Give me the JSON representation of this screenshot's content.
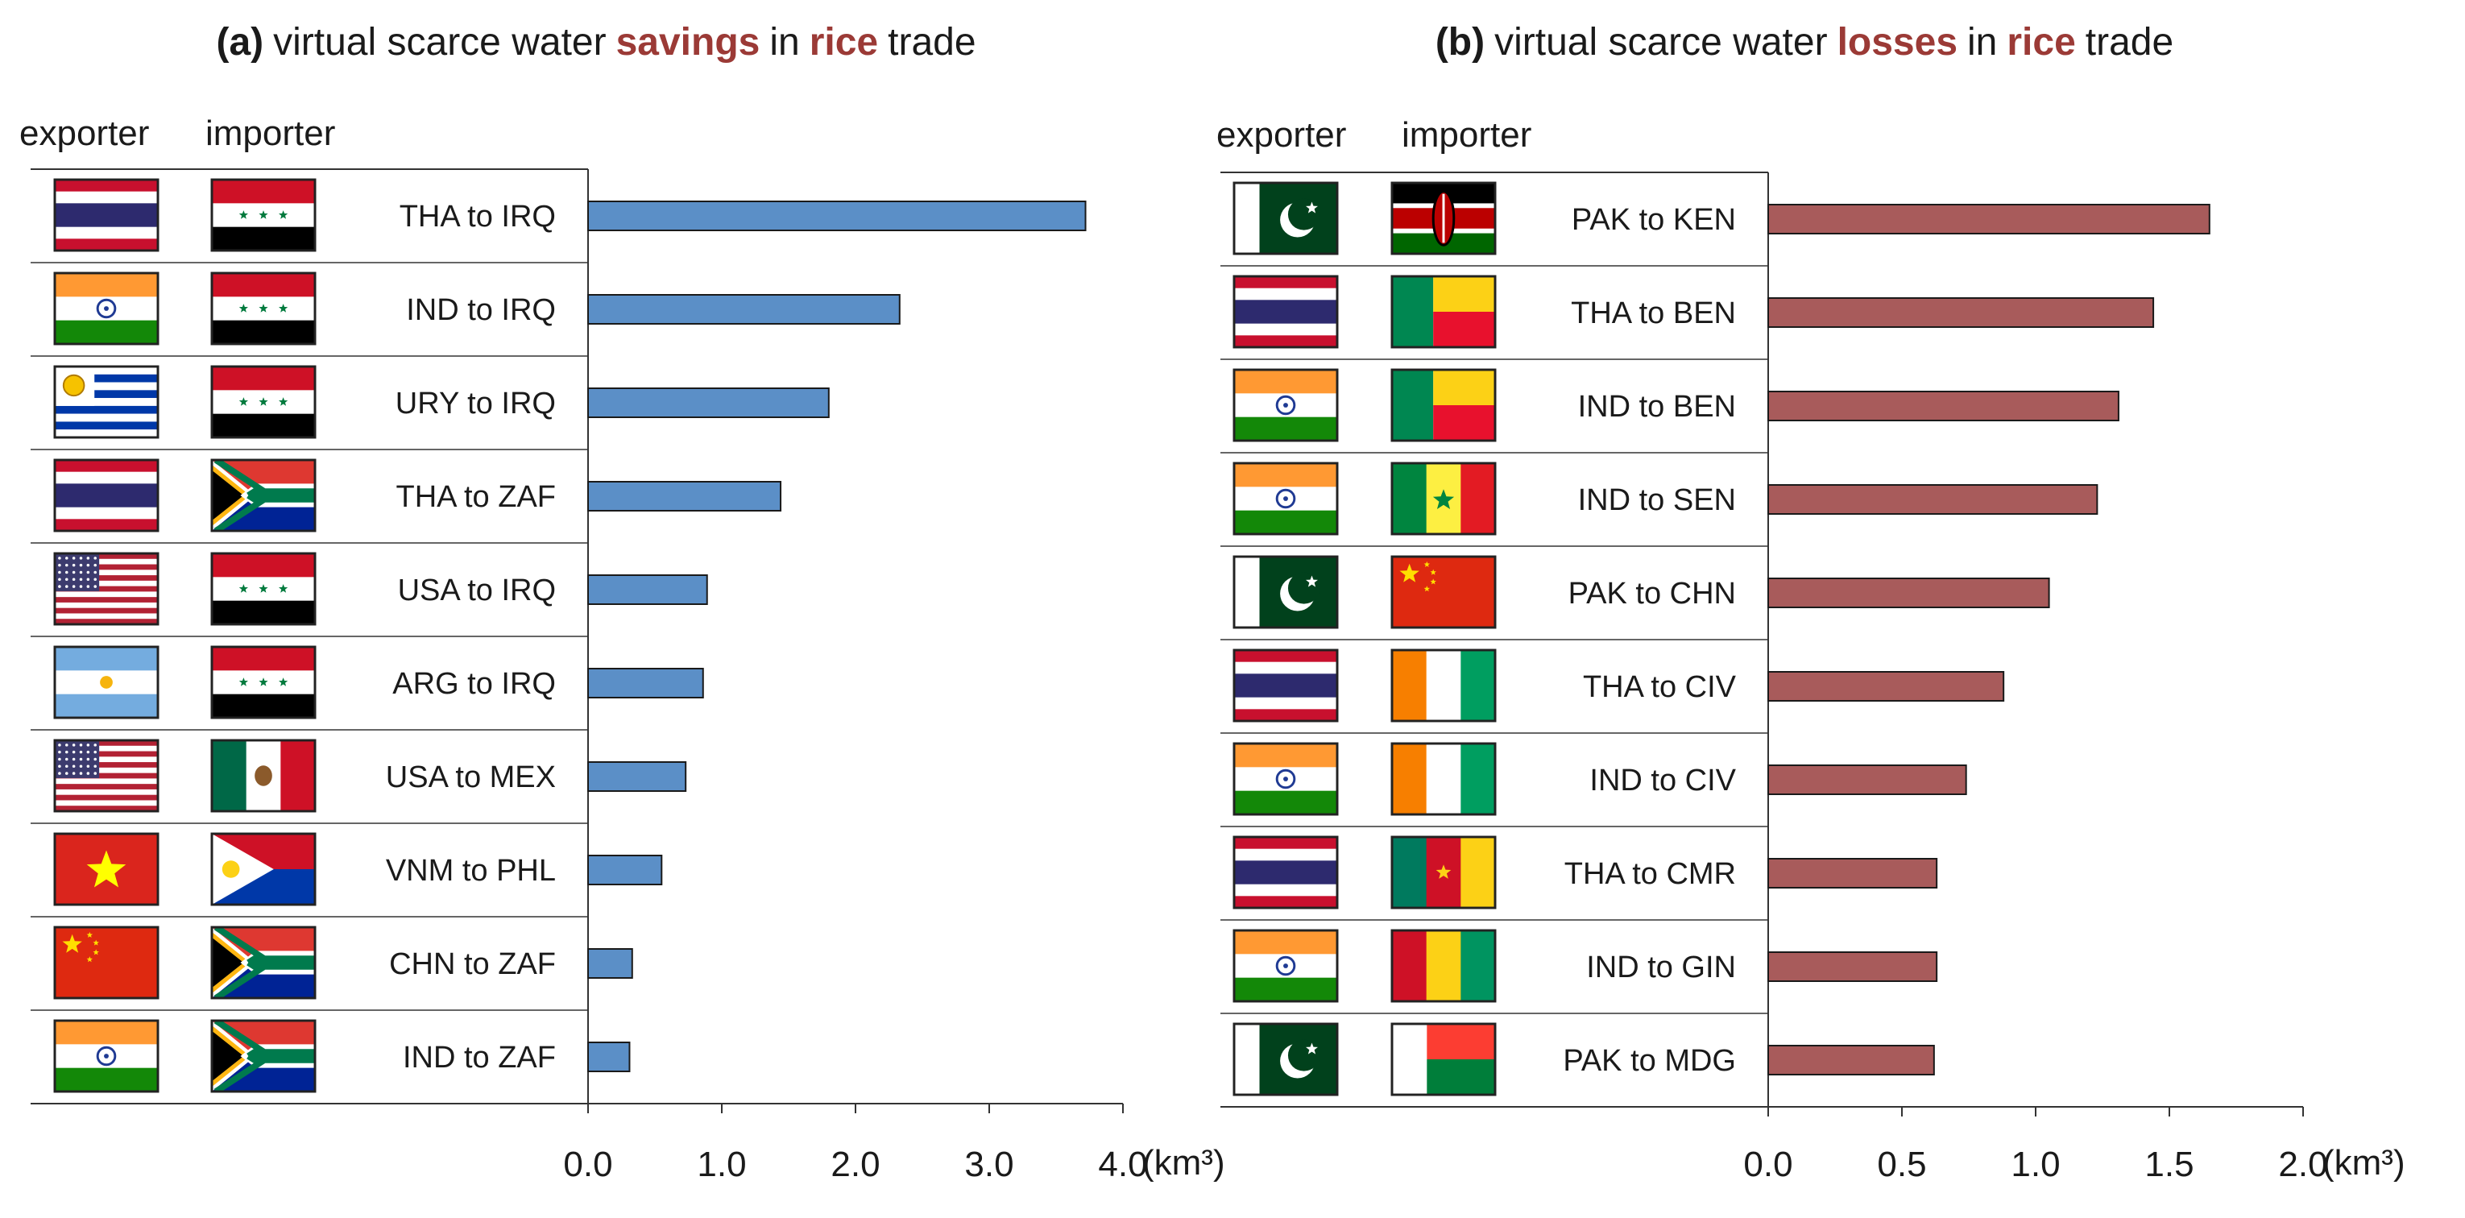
{
  "chart_data": [
    {
      "id": "a",
      "type": "bar",
      "orientation": "horizontal",
      "title": {
        "prefix": "(a)",
        "text1": "virtual scarce water",
        "highlight1": "savings",
        "text2": "in",
        "highlight2": "rice",
        "text3": "trade"
      },
      "column_headers": {
        "exporter": "exporter",
        "importer": "importer"
      },
      "categories": [
        "THA to IRQ",
        "IND to IRQ",
        "URY to IRQ",
        "THA to ZAF",
        "USA to IRQ",
        "ARG to IRQ",
        "USA to MEX",
        "VNM to PHL",
        "CHN to ZAF",
        "IND to ZAF"
      ],
      "exporters": [
        "THA",
        "IND",
        "URY",
        "THA",
        "USA",
        "ARG",
        "USA",
        "VNM",
        "CHN",
        "IND"
      ],
      "importers": [
        "IRQ",
        "IRQ",
        "IRQ",
        "ZAF",
        "IRQ",
        "IRQ",
        "MEX",
        "PHL",
        "ZAF",
        "ZAF"
      ],
      "values": [
        3.72,
        2.33,
        1.8,
        1.44,
        0.89,
        0.86,
        0.73,
        0.55,
        0.33,
        0.31
      ],
      "xlim": [
        0,
        4.0
      ],
      "xticks": [
        "0.0",
        "1.0",
        "2.0",
        "3.0",
        "4.0"
      ],
      "xlabel": "(km³)",
      "bar_color": "#5b8fc7"
    },
    {
      "id": "b",
      "type": "bar",
      "orientation": "horizontal",
      "title": {
        "prefix": "(b)",
        "text1": "virtual scarce water",
        "highlight1": "losses",
        "text2": "in",
        "highlight2": "rice",
        "text3": "trade"
      },
      "column_headers": {
        "exporter": "exporter",
        "importer": "importer"
      },
      "categories": [
        "PAK to KEN",
        "THA to BEN",
        "IND to BEN",
        "IND to SEN",
        "PAK to CHN",
        "THA to CIV",
        "IND to CIV",
        "THA to CMR",
        "IND to GIN",
        "PAK to MDG"
      ],
      "exporters": [
        "PAK",
        "THA",
        "IND",
        "IND",
        "PAK",
        "THA",
        "IND",
        "THA",
        "IND",
        "PAK"
      ],
      "importers": [
        "KEN",
        "BEN",
        "BEN",
        "SEN",
        "CHN",
        "CIV",
        "CIV",
        "CMR",
        "GIN",
        "MDG"
      ],
      "values": [
        1.65,
        1.44,
        1.31,
        1.23,
        1.05,
        0.88,
        0.74,
        0.63,
        0.63,
        0.62
      ],
      "xlim": [
        0,
        2.0
      ],
      "xticks": [
        "0.0",
        "0.5",
        "1.0",
        "1.5",
        "2.0"
      ],
      "xlabel": "(km³)",
      "bar_color": "#a85b5b"
    }
  ],
  "colors": {
    "highlight": "#9b3a36",
    "axis": "#333333"
  }
}
